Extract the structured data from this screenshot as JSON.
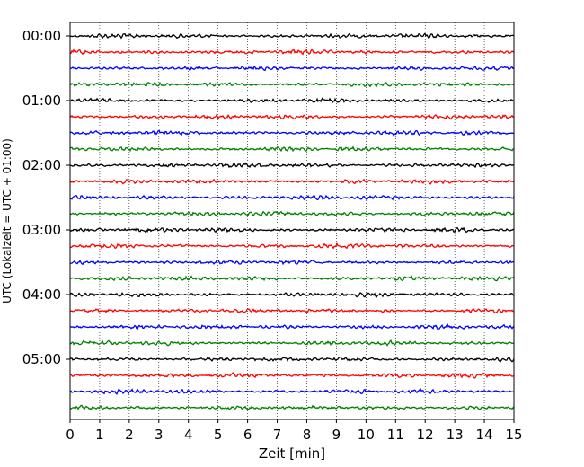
{
  "chart_data": {
    "type": "line",
    "title": "",
    "xlabel": "Zeit  [min]",
    "ylabel": "UTC (Lokalzeit = UTC + 01:00)",
    "xlim": [
      0,
      15
    ],
    "x_ticks": [
      0,
      1,
      2,
      3,
      4,
      5,
      6,
      7,
      8,
      9,
      10,
      11,
      12,
      13,
      14,
      15
    ],
    "y_ticks": [
      "00:00",
      "01:00",
      "02:00",
      "03:00",
      "04:00",
      "05:00"
    ],
    "vertical_grid": true,
    "grid_style": "dotted",
    "trace_interval_min": 15,
    "trace_colors_cycle": [
      "#000000",
      "#ff0000",
      "#0000ff",
      "#007f00"
    ],
    "traces": [
      {
        "start": "00:00",
        "color": "#000000"
      },
      {
        "start": "00:15",
        "color": "#ff0000"
      },
      {
        "start": "00:30",
        "color": "#0000ff"
      },
      {
        "start": "00:45",
        "color": "#007f00"
      },
      {
        "start": "01:00",
        "color": "#000000"
      },
      {
        "start": "01:15",
        "color": "#ff0000"
      },
      {
        "start": "01:30",
        "color": "#0000ff"
      },
      {
        "start": "01:45",
        "color": "#007f00"
      },
      {
        "start": "02:00",
        "color": "#000000"
      },
      {
        "start": "02:15",
        "color": "#ff0000"
      },
      {
        "start": "02:30",
        "color": "#0000ff"
      },
      {
        "start": "02:45",
        "color": "#007f00"
      },
      {
        "start": "03:00",
        "color": "#000000"
      },
      {
        "start": "03:15",
        "color": "#ff0000"
      },
      {
        "start": "03:30",
        "color": "#0000ff"
      },
      {
        "start": "03:45",
        "color": "#007f00"
      },
      {
        "start": "04:00",
        "color": "#000000"
      },
      {
        "start": "04:15",
        "color": "#ff0000"
      },
      {
        "start": "04:30",
        "color": "#0000ff"
      },
      {
        "start": "04:45",
        "color": "#007f00"
      },
      {
        "start": "05:00",
        "color": "#000000"
      },
      {
        "start": "05:15",
        "color": "#ff0000"
      },
      {
        "start": "05:30",
        "color": "#0000ff"
      },
      {
        "start": "05:45",
        "color": "#007f00"
      }
    ]
  }
}
